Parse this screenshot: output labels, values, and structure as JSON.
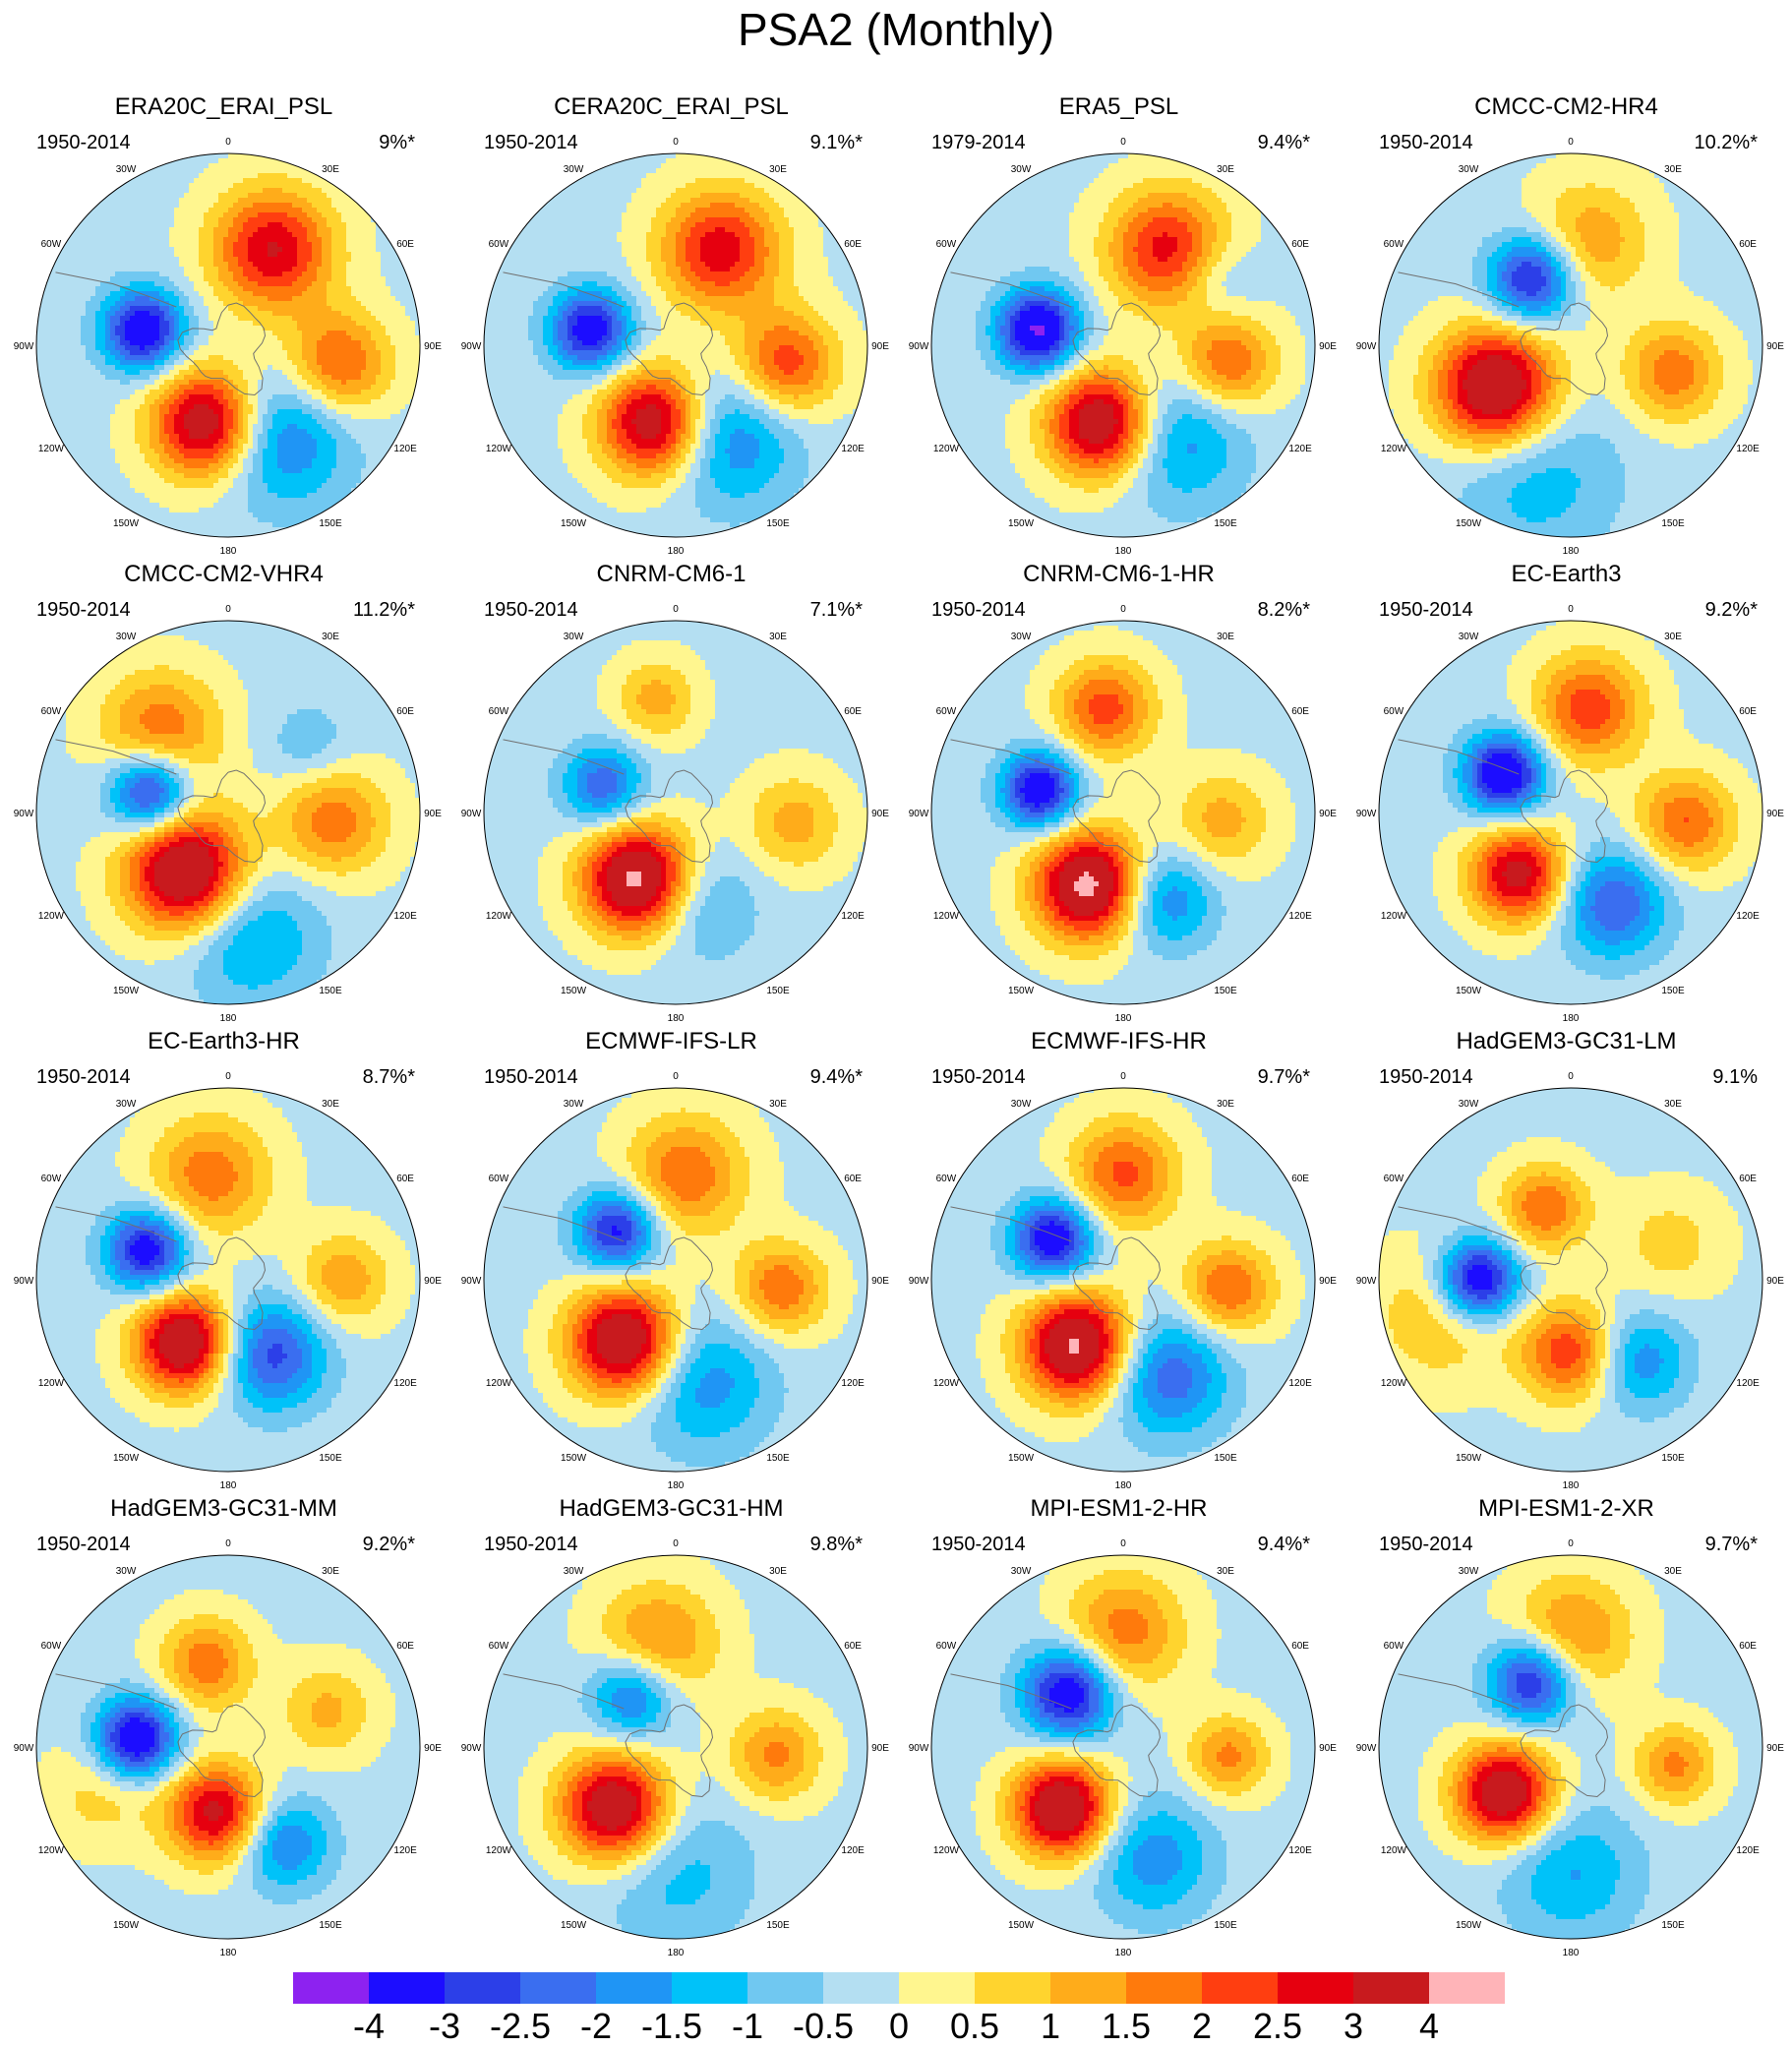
{
  "figure": {
    "title": "PSA2 (Monthly)"
  },
  "panels": [
    {
      "title": "ERA20C_ERAI_PSL",
      "period": "1950-2014",
      "variance": "9%*",
      "blobs": [
        {
          "a": 25,
          "r": 0.55,
          "amp": 3.2,
          "s": 0.22
        },
        {
          "a": 280,
          "r": 0.45,
          "amp": -3.6,
          "s": 0.15
        },
        {
          "a": 195,
          "r": 0.42,
          "amp": 4.1,
          "s": 0.2
        },
        {
          "a": 100,
          "r": 0.58,
          "amp": 2.4,
          "s": 0.19
        },
        {
          "a": 150,
          "r": 0.55,
          "amp": -2.1,
          "s": 0.25
        }
      ]
    },
    {
      "title": "CERA20C_ERAI_PSL",
      "period": "1950-2014",
      "variance": "9.1%*",
      "blobs": [
        {
          "a": 25,
          "r": 0.55,
          "amp": 3.0,
          "s": 0.22
        },
        {
          "a": 280,
          "r": 0.45,
          "amp": -3.4,
          "s": 0.15
        },
        {
          "a": 195,
          "r": 0.42,
          "amp": 4.0,
          "s": 0.2
        },
        {
          "a": 100,
          "r": 0.58,
          "amp": 2.6,
          "s": 0.19
        },
        {
          "a": 150,
          "r": 0.55,
          "amp": -2.0,
          "s": 0.25
        }
      ]
    },
    {
      "title": "ERA5_PSL",
      "period": "1979-2014",
      "variance": "9.4%*",
      "blobs": [
        {
          "a": 25,
          "r": 0.55,
          "amp": 2.9,
          "s": 0.22
        },
        {
          "a": 280,
          "r": 0.45,
          "amp": -4.0,
          "s": 0.15
        },
        {
          "a": 195,
          "r": 0.42,
          "amp": 4.2,
          "s": 0.2
        },
        {
          "a": 100,
          "r": 0.55,
          "amp": 2.3,
          "s": 0.18
        },
        {
          "a": 150,
          "r": 0.55,
          "amp": -1.8,
          "s": 0.25
        },
        {
          "a": 55,
          "r": 0.6,
          "amp": -0.9,
          "s": 0.15
        }
      ]
    },
    {
      "title": "CMCC-CM2-HR4",
      "period": "1950-2014",
      "variance": "10.2%*",
      "blobs": [
        {
          "a": 10,
          "r": 0.55,
          "amp": 1.6,
          "s": 0.22
        },
        {
          "a": 330,
          "r": 0.4,
          "amp": -3.3,
          "s": 0.16
        },
        {
          "a": 240,
          "r": 0.45,
          "amp": 4.4,
          "s": 0.22
        },
        {
          "a": 105,
          "r": 0.55,
          "amp": 2.0,
          "s": 0.18
        },
        {
          "a": 195,
          "r": 0.7,
          "amp": -1.2,
          "s": 0.3
        }
      ]
    },
    {
      "title": "CMCC-CM2-VHR4",
      "period": "1950-2014",
      "variance": "11.2%*",
      "blobs": [
        {
          "a": 320,
          "r": 0.55,
          "amp": 2.1,
          "s": 0.22
        },
        {
          "a": 285,
          "r": 0.42,
          "amp": -3.5,
          "s": 0.15
        },
        {
          "a": 215,
          "r": 0.38,
          "amp": 4.4,
          "s": 0.22
        },
        {
          "a": 95,
          "r": 0.55,
          "amp": 2.0,
          "s": 0.2
        },
        {
          "a": 170,
          "r": 0.65,
          "amp": -1.6,
          "s": 0.25
        },
        {
          "a": 50,
          "r": 0.55,
          "amp": -0.8,
          "s": 0.15
        }
      ]
    },
    {
      "title": "CNRM-CM6-1",
      "period": "1950-2014",
      "variance": "7.1%*",
      "blobs": [
        {
          "a": 350,
          "r": 0.6,
          "amp": 1.4,
          "s": 0.15
        },
        {
          "a": 290,
          "r": 0.4,
          "amp": -2.3,
          "s": 0.15
        },
        {
          "a": 210,
          "r": 0.4,
          "amp": 4.5,
          "s": 0.2
        },
        {
          "a": 95,
          "r": 0.62,
          "amp": 1.4,
          "s": 0.18
        },
        {
          "a": 165,
          "r": 0.5,
          "amp": -1.2,
          "s": 0.2
        }
      ]
    },
    {
      "title": "CNRM-CM6-1-HR",
      "period": "1950-2014",
      "variance": "8.2%*",
      "blobs": [
        {
          "a": 350,
          "r": 0.55,
          "amp": 2.4,
          "s": 0.18
        },
        {
          "a": 285,
          "r": 0.45,
          "amp": -3.6,
          "s": 0.14
        },
        {
          "a": 205,
          "r": 0.42,
          "amp": 4.5,
          "s": 0.2
        },
        {
          "a": 95,
          "r": 0.52,
          "amp": 1.4,
          "s": 0.18
        },
        {
          "a": 155,
          "r": 0.5,
          "amp": -2.0,
          "s": 0.18
        }
      ]
    },
    {
      "title": "EC-Earth3",
      "period": "1950-2014",
      "variance": "9.2%*",
      "blobs": [
        {
          "a": 10,
          "r": 0.55,
          "amp": 2.5,
          "s": 0.2
        },
        {
          "a": 300,
          "r": 0.4,
          "amp": -3.8,
          "s": 0.15
        },
        {
          "a": 220,
          "r": 0.42,
          "amp": 3.5,
          "s": 0.18
        },
        {
          "a": 95,
          "r": 0.6,
          "amp": 2.2,
          "s": 0.18
        },
        {
          "a": 155,
          "r": 0.52,
          "amp": -2.4,
          "s": 0.2
        }
      ]
    },
    {
      "title": "EC-Earth3-HR",
      "period": "1950-2014",
      "variance": "8.7%*",
      "blobs": [
        {
          "a": 350,
          "r": 0.55,
          "amp": 2.0,
          "s": 0.22
        },
        {
          "a": 290,
          "r": 0.45,
          "amp": -3.4,
          "s": 0.15
        },
        {
          "a": 215,
          "r": 0.4,
          "amp": 4.2,
          "s": 0.18
        },
        {
          "a": 90,
          "r": 0.6,
          "amp": 1.6,
          "s": 0.17
        },
        {
          "a": 150,
          "r": 0.45,
          "amp": -2.6,
          "s": 0.2
        }
      ]
    },
    {
      "title": "ECMWF-IFS-LR",
      "period": "1950-2014",
      "variance": "9.4%*",
      "blobs": [
        {
          "a": 5,
          "r": 0.55,
          "amp": 2.1,
          "s": 0.22
        },
        {
          "a": 310,
          "r": 0.4,
          "amp": -3.2,
          "s": 0.15
        },
        {
          "a": 220,
          "r": 0.42,
          "amp": 4.3,
          "s": 0.2
        },
        {
          "a": 95,
          "r": 0.55,
          "amp": 2.1,
          "s": 0.17
        },
        {
          "a": 165,
          "r": 0.55,
          "amp": -1.7,
          "s": 0.25
        }
      ]
    },
    {
      "title": "ECMWF-IFS-HR",
      "period": "1950-2014",
      "variance": "9.7%*",
      "blobs": [
        {
          "a": 0,
          "r": 0.55,
          "amp": 2.3,
          "s": 0.2
        },
        {
          "a": 300,
          "r": 0.42,
          "amp": -3.6,
          "s": 0.15
        },
        {
          "a": 215,
          "r": 0.42,
          "amp": 4.4,
          "s": 0.2
        },
        {
          "a": 95,
          "r": 0.55,
          "amp": 2.2,
          "s": 0.17
        },
        {
          "a": 155,
          "r": 0.55,
          "amp": -2.3,
          "s": 0.22
        }
      ]
    },
    {
      "title": "HadGEM3-GC31-LM",
      "period": "1950-2014",
      "variance": "9.1%",
      "blobs": [
        {
          "a": 340,
          "r": 0.4,
          "amp": 2.1,
          "s": 0.16
        },
        {
          "a": 270,
          "r": 0.48,
          "amp": -3.9,
          "s": 0.15
        },
        {
          "a": 180,
          "r": 0.38,
          "amp": 2.6,
          "s": 0.18
        },
        {
          "a": 255,
          "r": 0.7,
          "amp": 1.2,
          "s": 0.25
        },
        {
          "a": 140,
          "r": 0.55,
          "amp": -1.8,
          "s": 0.18
        },
        {
          "a": 70,
          "r": 0.55,
          "amp": 0.9,
          "s": 0.2
        }
      ]
    },
    {
      "title": "HadGEM3-GC31-MM",
      "period": "1950-2014",
      "variance": "9.2%*",
      "blobs": [
        {
          "a": 345,
          "r": 0.45,
          "amp": 2.0,
          "s": 0.17
        },
        {
          "a": 275,
          "r": 0.48,
          "amp": -3.8,
          "s": 0.15
        },
        {
          "a": 190,
          "r": 0.35,
          "amp": 3.4,
          "s": 0.18
        },
        {
          "a": 150,
          "r": 0.58,
          "amp": -2.0,
          "s": 0.17
        },
        {
          "a": 70,
          "r": 0.55,
          "amp": 1.3,
          "s": 0.17
        },
        {
          "a": 250,
          "r": 0.7,
          "amp": 0.9,
          "s": 0.2
        }
      ]
    },
    {
      "title": "HadGEM3-GC31-HM",
      "period": "1950-2014",
      "variance": "9.8%*",
      "blobs": [
        {
          "a": 350,
          "r": 0.55,
          "amp": 1.9,
          "s": 0.22
        },
        {
          "a": 320,
          "r": 0.35,
          "amp": -2.4,
          "s": 0.16
        },
        {
          "a": 225,
          "r": 0.45,
          "amp": 4.1,
          "s": 0.2
        },
        {
          "a": 95,
          "r": 0.52,
          "amp": 1.8,
          "s": 0.17
        },
        {
          "a": 180,
          "r": 0.65,
          "amp": -1.1,
          "s": 0.28
        }
      ]
    },
    {
      "title": "MPI-ESM1-2-HR",
      "period": "1950-2014",
      "variance": "9.4%*",
      "blobs": [
        {
          "a": 0,
          "r": 0.6,
          "amp": 2.0,
          "s": 0.22
        },
        {
          "a": 315,
          "r": 0.4,
          "amp": -3.6,
          "s": 0.17
        },
        {
          "a": 225,
          "r": 0.45,
          "amp": 4.2,
          "s": 0.18
        },
        {
          "a": 95,
          "r": 0.55,
          "amp": 1.8,
          "s": 0.15
        },
        {
          "a": 165,
          "r": 0.6,
          "amp": -1.7,
          "s": 0.22
        }
      ]
    },
    {
      "title": "MPI-ESM1-2-XR",
      "period": "1950-2014",
      "variance": "9.7%*",
      "blobs": [
        {
          "a": 0,
          "r": 0.58,
          "amp": 1.9,
          "s": 0.22
        },
        {
          "a": 330,
          "r": 0.4,
          "amp": -3.3,
          "s": 0.16
        },
        {
          "a": 235,
          "r": 0.42,
          "amp": 4.1,
          "s": 0.18
        },
        {
          "a": 100,
          "r": 0.55,
          "amp": 1.8,
          "s": 0.15
        },
        {
          "a": 180,
          "r": 0.65,
          "amp": -1.4,
          "s": 0.25
        }
      ]
    }
  ],
  "longitude_labels": [
    "0",
    "30E",
    "60E",
    "90E",
    "120E",
    "150E",
    "180",
    "150W",
    "120W",
    "90W",
    "60W",
    "30W"
  ],
  "colorbar": {
    "levels": [
      -4,
      -3,
      -2.5,
      -2,
      -1.5,
      -1,
      -0.5,
      0,
      0.5,
      1,
      1.5,
      2,
      2.5,
      3,
      4
    ],
    "labels": [
      "-4",
      "-3",
      "-2.5",
      "-2",
      "-1.5",
      "-1",
      "-0.5",
      "0",
      "0.5",
      "1",
      "1.5",
      "2",
      "2.5",
      "3",
      "4"
    ],
    "colors": [
      "#8d22f0",
      "#1c0dff",
      "#2c3fe8",
      "#3a6ef0",
      "#1f95f5",
      "#00c2f9",
      "#70c8f1",
      "#b4dff2",
      "#fff68f",
      "#ffd42e",
      "#ffac1a",
      "#ff7a0c",
      "#ff3e10",
      "#e6000f",
      "#c81a1e",
      "#ffb4b8"
    ]
  }
}
